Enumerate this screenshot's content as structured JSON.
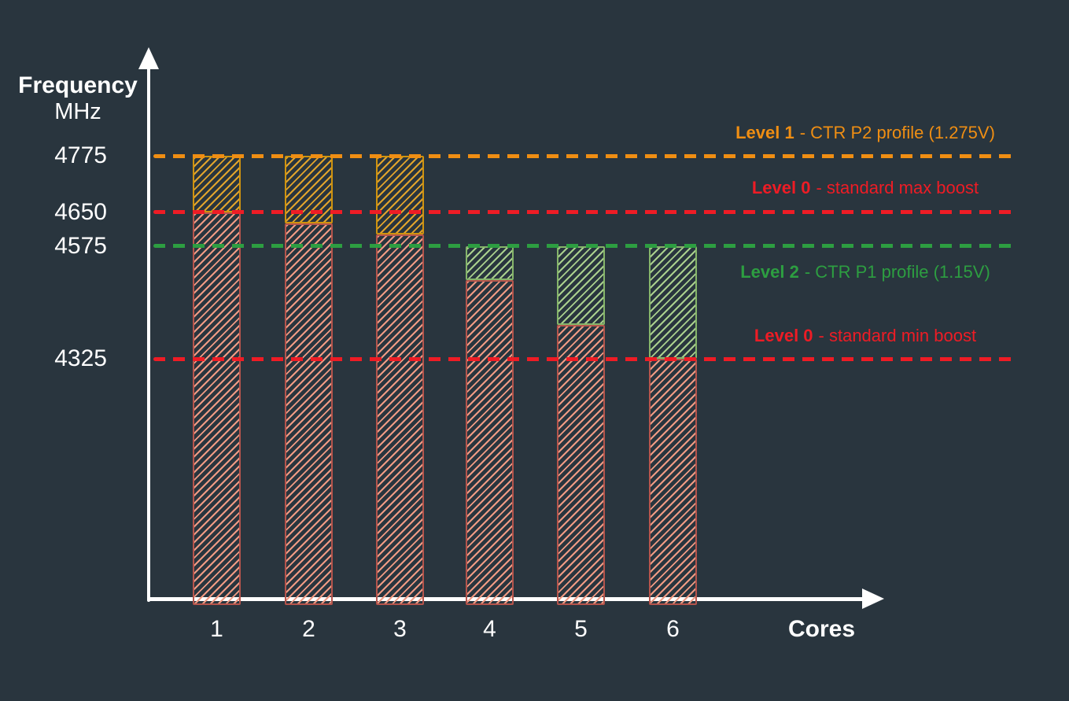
{
  "chart_data": {
    "type": "bar",
    "title": "",
    "xlabel": "Cores",
    "ylabel_line1": "Frequency",
    "ylabel_line2": "MHz",
    "categories": [
      "1",
      "2",
      "3",
      "4",
      "5",
      "6"
    ],
    "y_ticks": [
      "4775",
      "4650",
      "4575",
      "4325"
    ],
    "ylim": [
      4325,
      4775
    ],
    "grid": "off",
    "legend_position": "right",
    "bars": [
      {
        "category": "1",
        "level0_top_mhz": 4650,
        "boost_top_mhz": 4775,
        "boost_profile": "Level 1"
      },
      {
        "category": "2",
        "level0_top_mhz": 4625,
        "boost_top_mhz": 4775,
        "boost_profile": "Level 1"
      },
      {
        "category": "3",
        "level0_top_mhz": 4600,
        "boost_top_mhz": 4775,
        "boost_profile": "Level 1"
      },
      {
        "category": "4",
        "level0_top_mhz": 4500,
        "boost_top_mhz": 4575,
        "boost_profile": "Level 2"
      },
      {
        "category": "5",
        "level0_top_mhz": 4400,
        "boost_top_mhz": 4575,
        "boost_profile": "Level 2"
      },
      {
        "category": "6",
        "level0_top_mhz": 4325,
        "boost_top_mhz": 4575,
        "boost_profile": "Level 2"
      }
    ],
    "guide_lines": [
      {
        "value": 4775,
        "label": "Level 1",
        "desc": "- CTR P2 profile (1.275V)",
        "color": "#ef8e13"
      },
      {
        "value": 4650,
        "label": "Level 0",
        "desc": "- standard max boost",
        "color": "#ee1c25"
      },
      {
        "value": 4575,
        "label": "Level 2",
        "desc": "- CTR P1 profile (1.15V)",
        "color": "#2d9e41"
      },
      {
        "value": 4325,
        "label": "Level 0",
        "desc": "- standard min boost",
        "color": "#ee1c25"
      }
    ]
  },
  "colors": {
    "background": "#29353e",
    "axis": "#ffffff",
    "text": "#ffffff",
    "level0_bar_border": "#b5544c",
    "level0_bar_hatch": "#f09b84",
    "level1_bar_border": "#cf930f",
    "level1_bar_hatch": "#e1a42c",
    "level2_bar_border": "#85b56a",
    "level2_bar_hatch": "#a9cf8d"
  }
}
